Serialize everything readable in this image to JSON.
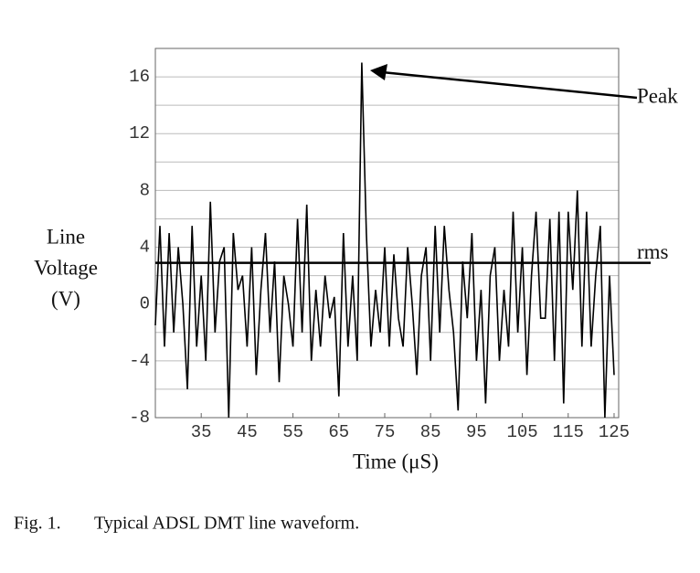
{
  "chart_data": {
    "type": "line",
    "ylabel": [
      "Line",
      "Voltage",
      "(V)"
    ],
    "xlabel": "Time (μS)",
    "caption": {
      "number": "Fig. 1.",
      "text": "Typical ADSL DMT line waveform."
    },
    "x": [
      25,
      26,
      27,
      28,
      29,
      30,
      31,
      32,
      33,
      34,
      35,
      36,
      37,
      38,
      39,
      40,
      41,
      42,
      43,
      44,
      45,
      46,
      47,
      48,
      49,
      50,
      51,
      52,
      53,
      54,
      55,
      56,
      57,
      58,
      59,
      60,
      61,
      62,
      63,
      64,
      65,
      66,
      67,
      68,
      69,
      70,
      71,
      72,
      73,
      74,
      75,
      76,
      77,
      78,
      79,
      80,
      81,
      82,
      83,
      84,
      85,
      86,
      87,
      88,
      89,
      90,
      91,
      92,
      93,
      94,
      95,
      96,
      97,
      98,
      99,
      100,
      101,
      102,
      103,
      104,
      105,
      106,
      107,
      108,
      109,
      110,
      111,
      112,
      113,
      114,
      115,
      116,
      117,
      118,
      119,
      120,
      121,
      122,
      123,
      124,
      125
    ],
    "values": [
      -1.5,
      5.5,
      -3,
      5,
      -2,
      4,
      0,
      -6,
      5.5,
      -3,
      2,
      -4,
      7.2,
      -2,
      3,
      4,
      -8,
      5,
      1,
      2,
      -3,
      4,
      -5,
      1,
      5,
      -2,
      3,
      -5.5,
      2,
      0,
      -3,
      6,
      -2,
      7,
      -4,
      1,
      -3,
      2,
      -1,
      0.5,
      -6.5,
      5,
      -3,
      2,
      -4,
      17,
      5,
      -3,
      1,
      -2,
      4,
      -3,
      3.5,
      -1,
      -3,
      4,
      0,
      -5,
      2,
      4,
      -4,
      5.5,
      -2,
      5.5,
      1,
      -2,
      -7.5,
      3,
      -1,
      5,
      -4,
      1,
      -7,
      2,
      4,
      -4,
      1,
      -3,
      6.5,
      -2,
      4,
      -5,
      2,
      6.5,
      -1,
      -1,
      6,
      -4,
      6.5,
      -7,
      6.5,
      1,
      8,
      -3,
      6.5,
      -3,
      2,
      5.5,
      -8,
      2,
      -5
    ],
    "color": "#000000",
    "xlim": [
      25,
      126
    ],
    "xticks": [
      35,
      45,
      55,
      65,
      75,
      85,
      95,
      105,
      115,
      125
    ],
    "ylim": [
      -8,
      18
    ],
    "yticks": [
      -8,
      -4,
      0,
      4,
      8,
      12,
      16
    ],
    "minor_grid": [
      -6,
      -2,
      2,
      6,
      10,
      14
    ],
    "grid": true,
    "rms": {
      "value": 2.9,
      "label": "rms"
    },
    "peak_label": "Peak"
  }
}
